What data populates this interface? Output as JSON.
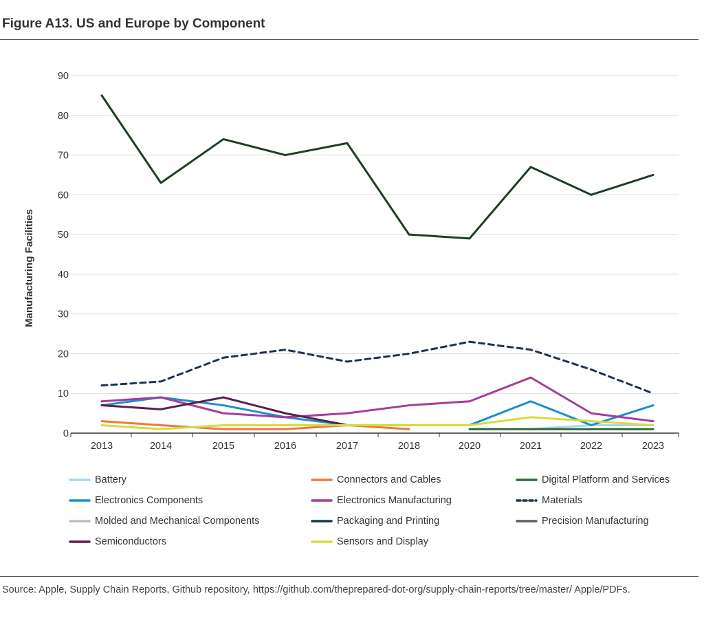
{
  "figure": {
    "title": "Figure A13. US and Europe by Component",
    "source": "Source: Apple, Supply Chain Reports, Github repository, https://github.com/theprepared-dot-org/supply-chain-reports/tree/master/ Apple/PDFs."
  },
  "chart_data": {
    "type": "line",
    "title": "",
    "xlabel": "",
    "ylabel": "Manufacturing Facilities",
    "categories": [
      "2013",
      "2014",
      "2015",
      "2016",
      "2017",
      "2018",
      "2020",
      "2021",
      "2022",
      "2023"
    ],
    "ylim": [
      0,
      90
    ],
    "yticks": [
      0,
      10,
      20,
      30,
      40,
      50,
      60,
      70,
      80,
      90
    ],
    "grid": true,
    "legend_position": "bottom",
    "series": [
      {
        "name": "Battery",
        "color": "#a6d8f0",
        "dash": false,
        "values": [
          null,
          null,
          null,
          null,
          null,
          null,
          null,
          1,
          2,
          2
        ]
      },
      {
        "name": "Connectors and Cables",
        "color": "#ea7b3c",
        "dash": false,
        "values": [
          3,
          2,
          1,
          1,
          2,
          1,
          null,
          null,
          null,
          null
        ]
      },
      {
        "name": "Digital Platform and Services",
        "color": "#2e6b35",
        "dash": false,
        "values": [
          null,
          null,
          null,
          null,
          null,
          null,
          1,
          1,
          1,
          1
        ]
      },
      {
        "name": "Electronics Components",
        "color": "#1a8fcf",
        "dash": false,
        "values": [
          7,
          9,
          7,
          4,
          2,
          2,
          2,
          8,
          2,
          7
        ]
      },
      {
        "name": "Electronics Manufacturing",
        "color": "#a43c9c",
        "dash": false,
        "values": [
          8,
          9,
          5,
          4,
          5,
          7,
          8,
          14,
          5,
          3
        ]
      },
      {
        "name": "Materials",
        "color": "#1f3350",
        "dash": true,
        "values": [
          12,
          13,
          19,
          21,
          18,
          20,
          23,
          21,
          16,
          10
        ]
      },
      {
        "name": "Molded and Mechanical Components",
        "color": "#bdbdbd",
        "dash": false,
        "values": [
          null,
          null,
          null,
          null,
          null,
          null,
          null,
          null,
          null,
          null
        ]
      },
      {
        "name": "Packaging and Printing",
        "color": "#123b4a",
        "dash": false,
        "values": [
          null,
          null,
          null,
          null,
          null,
          null,
          null,
          null,
          null,
          null
        ]
      },
      {
        "name": "Precision Manufacturing",
        "color": "#5e5e66",
        "dash": false,
        "values": [
          null,
          null,
          null,
          null,
          null,
          null,
          null,
          null,
          null,
          null
        ]
      },
      {
        "name": "Semiconductors",
        "color": "#5b1f4e",
        "dash": false,
        "values": [
          7,
          6,
          9,
          5,
          2,
          null,
          null,
          null,
          null,
          null
        ]
      },
      {
        "name": "Sensors and Display",
        "color": "#d6dc3a",
        "dash": false,
        "values": [
          2,
          1,
          2,
          2,
          2,
          2,
          2,
          4,
          3,
          2
        ]
      },
      {
        "name": "",
        "color": "#1e3f22",
        "dash": false,
        "values": [
          85,
          63,
          74,
          70,
          73,
          50,
          49,
          67,
          60,
          65
        ]
      }
    ]
  }
}
